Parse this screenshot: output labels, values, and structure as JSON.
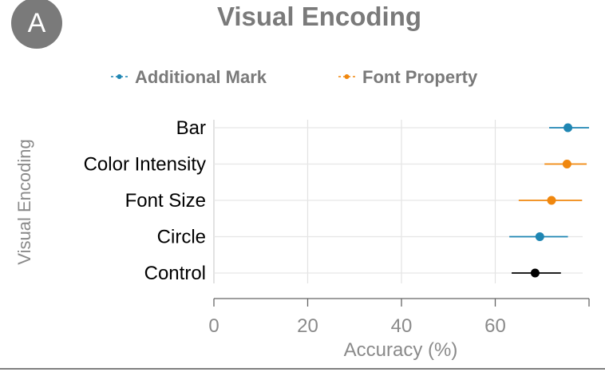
{
  "panel_badge": "A",
  "chart_data": {
    "type": "dot-interval",
    "title": "Visual Encoding",
    "xlabel": "Accuracy (%)",
    "ylabel": "Visual Encoding",
    "xlim": [
      0,
      80
    ],
    "xticks": [
      0,
      20,
      40,
      60
    ],
    "grid": true,
    "legend_position": "top",
    "series": [
      {
        "name": "Additional Mark",
        "color": "#1f86b3"
      },
      {
        "name": "Font Property",
        "color": "#f0870e"
      }
    ],
    "points": [
      {
        "category": "Bar",
        "series": "Additional Mark",
        "value": 75.5,
        "ci": [
          71.5,
          80.0
        ],
        "color": "#1f86b3"
      },
      {
        "category": "Color Intensity",
        "series": "Font Property",
        "value": 75.3,
        "ci": [
          70.5,
          79.5
        ],
        "color": "#f0870e"
      },
      {
        "category": "Font Size",
        "series": "Font Property",
        "value": 72.0,
        "ci": [
          65.0,
          78.5
        ],
        "color": "#f0870e"
      },
      {
        "category": "Circle",
        "series": "Additional Mark",
        "value": 69.5,
        "ci": [
          63.0,
          75.5
        ],
        "color": "#1f86b3"
      },
      {
        "category": "Control",
        "series": "Control",
        "value": 68.5,
        "ci": [
          63.5,
          74.0
        ],
        "color": "#000000"
      }
    ]
  }
}
